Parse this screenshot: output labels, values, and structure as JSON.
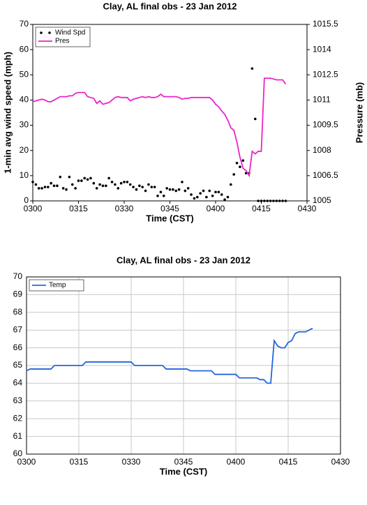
{
  "chart_data": [
    {
      "type": "combo",
      "title": "Clay, AL final obs - 23 Jan 2012",
      "xlabel": "Time (CST)",
      "ylabel": "1-min avg wind speed (mph)",
      "y2label": "Pressure (mb)",
      "xlim": [
        180,
        270
      ],
      "xticks": [
        {
          "value": 180,
          "label": "0300"
        },
        {
          "value": 195,
          "label": "0315"
        },
        {
          "value": 210,
          "label": "0330"
        },
        {
          "value": 225,
          "label": "0345"
        },
        {
          "value": 240,
          "label": "0400"
        },
        {
          "value": 255,
          "label": "0415"
        },
        {
          "value": 270,
          "label": "0430"
        }
      ],
      "ylim": [
        0,
        70
      ],
      "yticks": [
        0,
        10,
        20,
        30,
        40,
        50,
        60,
        70
      ],
      "y2lim": [
        1005,
        1015.5
      ],
      "y2ticks": [
        1005,
        1006.5,
        1008,
        1009.5,
        1011,
        1012.5,
        1014,
        1015.5
      ],
      "grid": false,
      "legend": "upper left",
      "x": [
        180,
        181,
        182,
        183,
        184,
        185,
        186,
        187,
        188,
        189,
        190,
        191,
        192,
        193,
        194,
        195,
        196,
        197,
        198,
        199,
        200,
        201,
        202,
        203,
        204,
        205,
        206,
        207,
        208,
        209,
        210,
        211,
        212,
        213,
        214,
        215,
        216,
        217,
        218,
        219,
        220,
        221,
        222,
        223,
        224,
        225,
        226,
        227,
        228,
        229,
        230,
        231,
        232,
        233,
        234,
        235,
        236,
        237,
        238,
        239,
        240,
        241,
        242,
        243,
        244,
        245,
        246,
        247,
        248,
        249,
        250,
        251,
        252,
        253,
        254,
        255,
        256,
        257,
        258,
        259,
        260,
        261,
        262,
        263
      ],
      "series": [
        {
          "name": "Wind Spd",
          "mode": "markers",
          "color": "#000000",
          "values": [
            7.5,
            6.5,
            5,
            5,
            5.5,
            5.5,
            7,
            6,
            6,
            9.5,
            5,
            4.5,
            9.5,
            6.5,
            5,
            8,
            8,
            9,
            8.5,
            9,
            7,
            5,
            6.5,
            6,
            6,
            9,
            7.5,
            6.5,
            5,
            7,
            7.5,
            7.5,
            6.5,
            5.5,
            4.5,
            6,
            5.5,
            4,
            6.5,
            5.5,
            5.5,
            2,
            3.5,
            2,
            5,
            4.5,
            4.5,
            4,
            4.5,
            7.5,
            4,
            5,
            2.5,
            1,
            1.5,
            3,
            4,
            1.5,
            4,
            2,
            3.5,
            3.5,
            2.5,
            0.5,
            1.5,
            6.5,
            10.5,
            15,
            13.5,
            16,
            11,
            11,
            52.5,
            32.5,
            0,
            0,
            0,
            0,
            0,
            0,
            0,
            0,
            0,
            0
          ]
        },
        {
          "name": "Pres",
          "mode": "line",
          "axis": "y2",
          "color": "#ee22cc",
          "values": [
            1010.9,
            1010.95,
            1011.0,
            1011.05,
            1011.0,
            1010.9,
            1010.9,
            1011.0,
            1011.1,
            1011.2,
            1011.2,
            1011.2,
            1011.25,
            1011.25,
            1011.4,
            1011.45,
            1011.45,
            1011.45,
            1011.2,
            1011.15,
            1011.1,
            1010.8,
            1010.95,
            1010.75,
            1010.8,
            1010.85,
            1011.0,
            1011.15,
            1011.2,
            1011.15,
            1011.15,
            1011.15,
            1010.95,
            1011.05,
            1011.1,
            1011.15,
            1011.2,
            1011.15,
            1011.2,
            1011.15,
            1011.15,
            1011.2,
            1011.35,
            1011.2,
            1011.2,
            1011.2,
            1011.2,
            1011.2,
            1011.15,
            1011.05,
            1011.1,
            1011.1,
            1011.15,
            1011.15,
            1011.15,
            1011.15,
            1011.15,
            1011.15,
            1011.15,
            1011.0,
            1010.75,
            1010.6,
            1010.35,
            1010.15,
            1009.8,
            1009.35,
            1009.2,
            1008.5,
            1007.6,
            1006.95,
            1006.8,
            1006.5,
            1007.95,
            1007.8,
            1007.95,
            1007.95,
            1012.3,
            1012.3,
            1012.3,
            1012.25,
            1012.2,
            1012.2,
            1012.2,
            1011.95
          ]
        }
      ]
    },
    {
      "type": "line",
      "title": "Clay, AL final obs - 23 Jan 2012",
      "xlabel": "Time (CST)",
      "xlim": [
        180,
        270
      ],
      "xticks": [
        {
          "value": 180,
          "label": "0300"
        },
        {
          "value": 195,
          "label": "0315"
        },
        {
          "value": 210,
          "label": "0330"
        },
        {
          "value": 225,
          "label": "0345"
        },
        {
          "value": 240,
          "label": "0400"
        },
        {
          "value": 255,
          "label": "0415"
        },
        {
          "value": 270,
          "label": "0430"
        }
      ],
      "ylim": [
        60,
        70
      ],
      "yticks": [
        60,
        61,
        62,
        63,
        64,
        65,
        66,
        67,
        68,
        69,
        70
      ],
      "grid": true,
      "legend": "upper left",
      "x": [
        180,
        181,
        182,
        183,
        184,
        185,
        186,
        187,
        188,
        189,
        190,
        191,
        192,
        193,
        194,
        195,
        196,
        197,
        198,
        199,
        200,
        201,
        202,
        203,
        204,
        205,
        206,
        207,
        208,
        209,
        210,
        211,
        212,
        213,
        214,
        215,
        216,
        217,
        218,
        219,
        220,
        221,
        222,
        223,
        224,
        225,
        226,
        227,
        228,
        229,
        230,
        231,
        232,
        233,
        234,
        235,
        236,
        237,
        238,
        239,
        240,
        241,
        242,
        243,
        244,
        245,
        246,
        247,
        248,
        249,
        250,
        251,
        252,
        253,
        254,
        255,
        256,
        257,
        258,
        259,
        260,
        261,
        262
      ],
      "series": [
        {
          "name": "Temp",
          "mode": "line",
          "color": "#2266dd",
          "values": [
            64.7,
            64.8,
            64.8,
            64.8,
            64.8,
            64.8,
            64.8,
            64.8,
            65.0,
            65.0,
            65.0,
            65.0,
            65.0,
            65.0,
            65.0,
            65.0,
            65.0,
            65.2,
            65.2,
            65.2,
            65.2,
            65.2,
            65.2,
            65.2,
            65.2,
            65.2,
            65.2,
            65.2,
            65.2,
            65.2,
            65.2,
            65.0,
            65.0,
            65.0,
            65.0,
            65.0,
            65.0,
            65.0,
            65.0,
            65.0,
            64.8,
            64.8,
            64.8,
            64.8,
            64.8,
            64.8,
            64.8,
            64.7,
            64.7,
            64.7,
            64.7,
            64.7,
            64.7,
            64.7,
            64.5,
            64.5,
            64.5,
            64.5,
            64.5,
            64.5,
            64.5,
            64.3,
            64.3,
            64.3,
            64.3,
            64.3,
            64.3,
            64.2,
            64.2,
            64.0,
            64.0,
            66.4,
            66.1,
            66.0,
            66.0,
            66.3,
            66.4,
            66.8,
            66.9,
            66.9,
            66.9,
            67.0,
            67.1
          ]
        }
      ]
    }
  ]
}
